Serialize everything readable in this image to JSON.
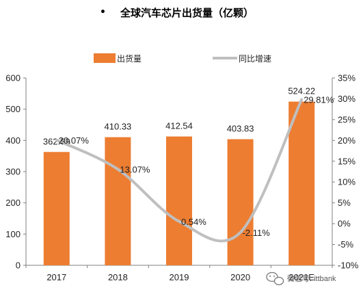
{
  "chart_data": {
    "type": "bar",
    "title": "全球汽车芯片出货量（亿颗）",
    "title_bullet": "•",
    "categories": [
      "2017",
      "2018",
      "2019",
      "2020",
      "2021E"
    ],
    "series": [
      {
        "name": "出货量",
        "type": "bar",
        "axis": "left",
        "color": "#ED7D31",
        "values": [
          362.89,
          410.33,
          412.54,
          403.83,
          524.22
        ],
        "labels": [
          "362.89",
          "410.33",
          "412.54",
          "403.83",
          "524.22"
        ]
      },
      {
        "name": "同比增速",
        "type": "line",
        "axis": "right",
        "color": "#BFBFBF",
        "smooth": true,
        "values": [
          20.07,
          13.07,
          0.54,
          -2.11,
          29.81
        ],
        "labels": [
          "20.07%",
          "13.07%",
          "0.54%",
          "-2.11%",
          "29.81%"
        ]
      }
    ],
    "y_left": {
      "min": 0,
      "max": 600,
      "step": 100,
      "ticks": [
        "0",
        "100",
        "200",
        "300",
        "400",
        "500",
        "600"
      ]
    },
    "y_right": {
      "min": -10,
      "max": 35,
      "step": 5,
      "ticks": [
        "-10%",
        "-5%",
        "0%",
        "5%",
        "10%",
        "15%",
        "20%",
        "25%",
        "30%",
        "35%"
      ]
    },
    "legend_position": "top",
    "grid": false,
    "xlabel": "",
    "ylabel": ""
  },
  "watermark": {
    "icon": "wechat-icon",
    "text": "微信号: ittbank"
  }
}
